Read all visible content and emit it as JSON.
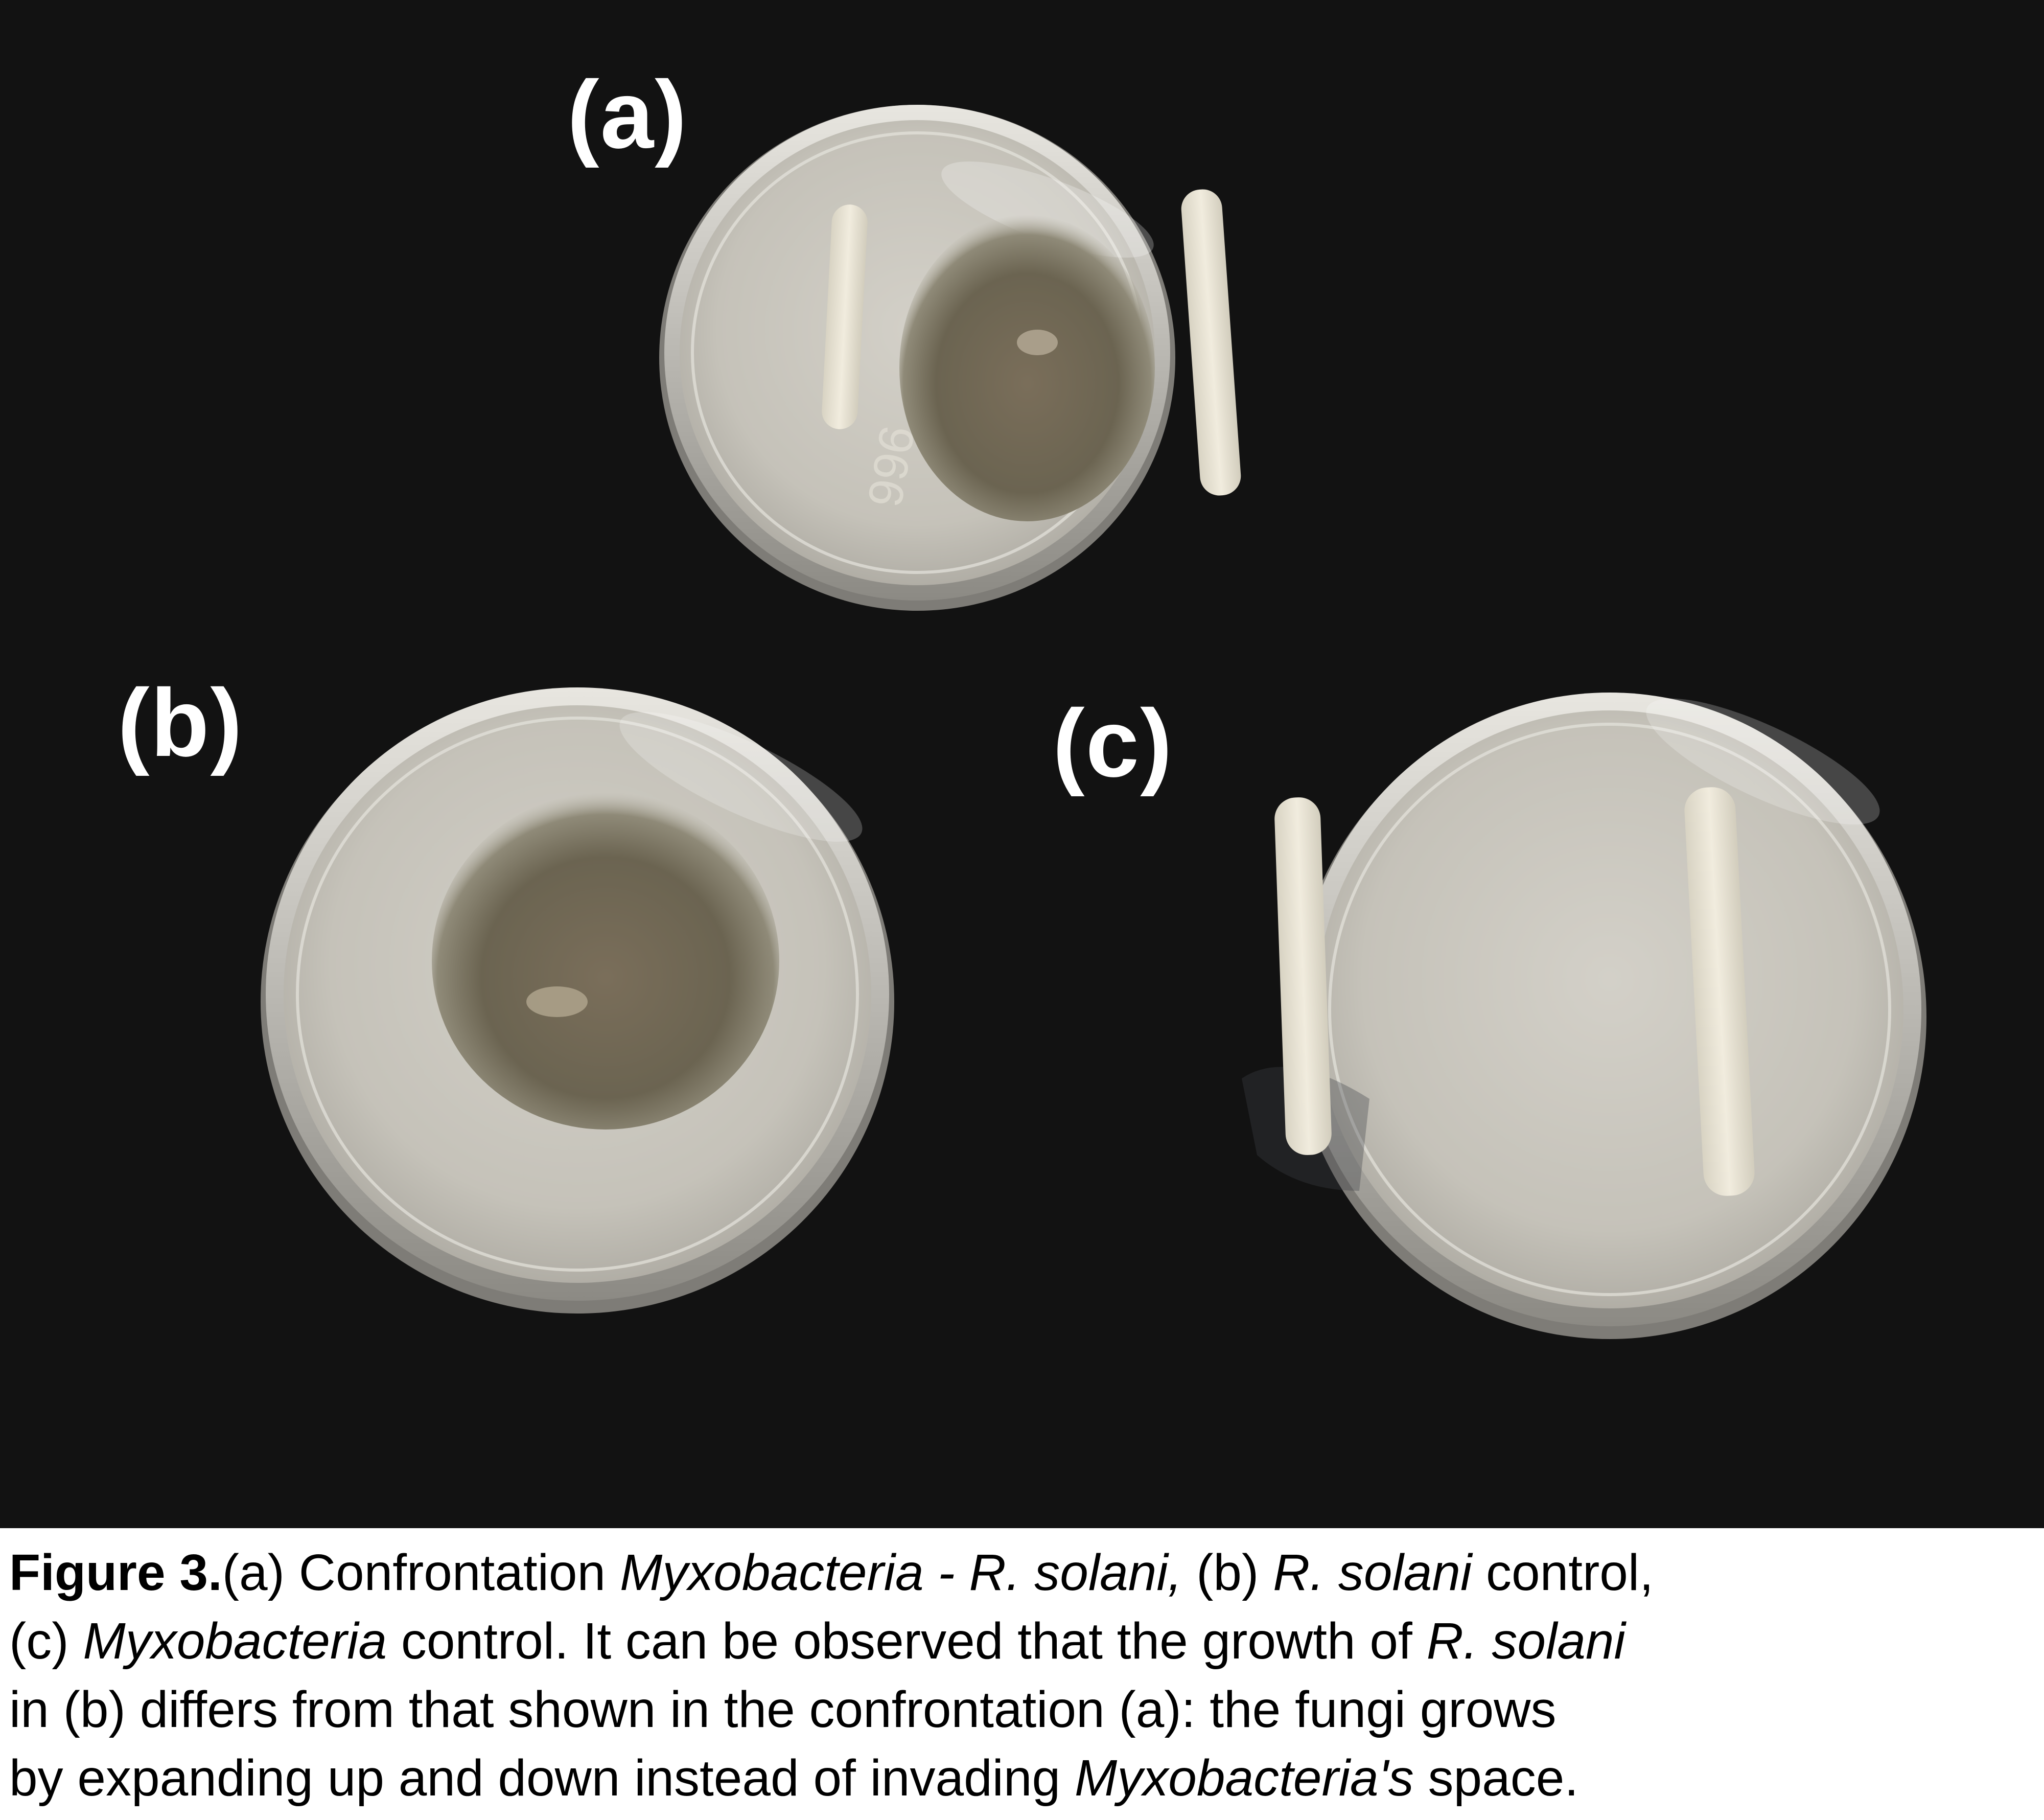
{
  "panels": {
    "a": "(a)",
    "b": "(b)",
    "c": "(c)"
  },
  "dish_a_marking": "966",
  "caption": {
    "figure_label": "Figure 3.",
    "l1_a": "(a) Confrontation ",
    "l1_myxo": "Myxobacteria - R. solani,",
    "l1_b": " (b) ",
    "l1_rsolani": "R. solani",
    "l1_control": " control,",
    "l2_c": "(c) ",
    "l2_myxo": "Myxobacteria",
    "l2_text": " control. It can be observed that the growth of ",
    "l2_rsolani": "R. solani",
    "l3_text": "in (b) differs from that shown in the confrontation (a): the fungi grows",
    "l4_text": "by expanding up and down instead of invading ",
    "l4_myxo": "Myxobacteria's",
    "l4_space": " space."
  },
  "colors": {
    "background": "#121212",
    "agar": "#c9c6bd",
    "fungus": "#6d6552",
    "bacteria_streak": "#ece7d8"
  }
}
